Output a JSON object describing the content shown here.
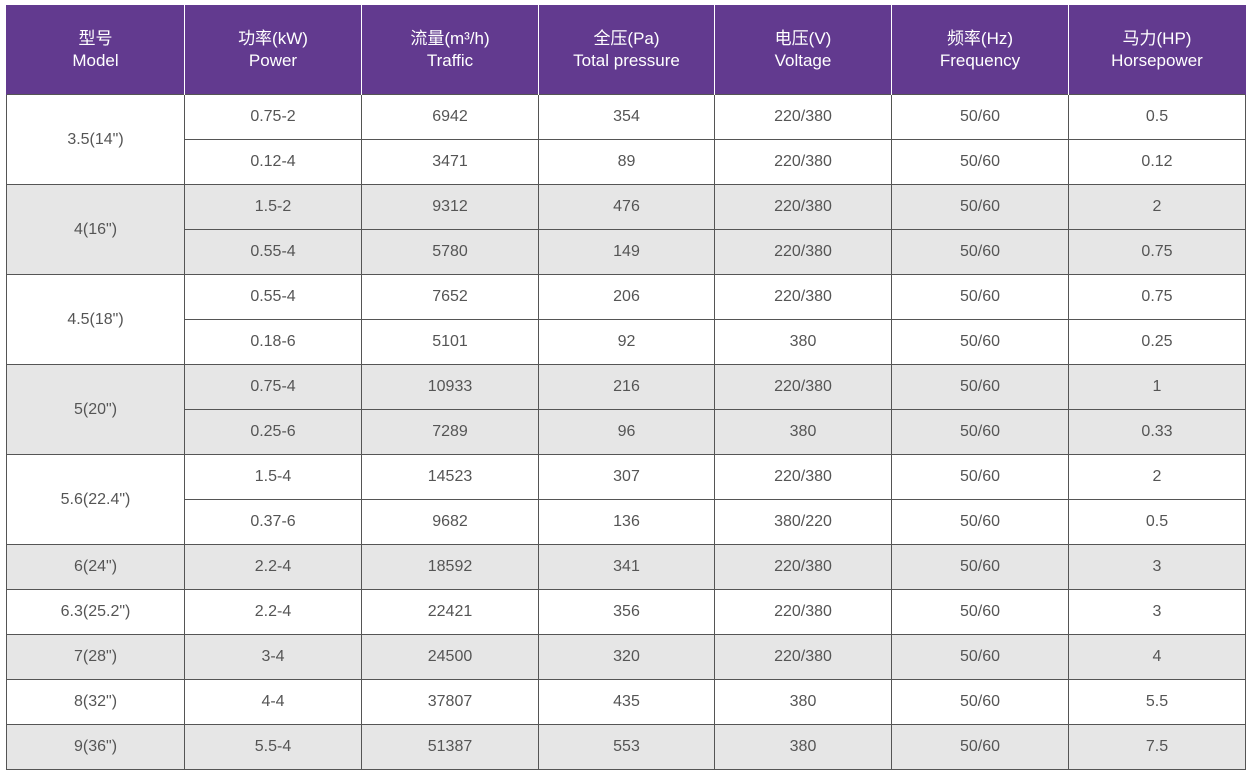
{
  "table": {
    "headers": [
      {
        "zh": "型号",
        "en": "Model"
      },
      {
        "zh": "功率(kW)",
        "en": "Power"
      },
      {
        "zh": "流量(m³/h)",
        "en": "Traffic"
      },
      {
        "zh": "全压(Pa)",
        "en": "Total pressure"
      },
      {
        "zh": "电压(V)",
        "en": "Voltage"
      },
      {
        "zh": "频率(Hz)",
        "en": "Frequency"
      },
      {
        "zh": "马力(HP)",
        "en": "Horsepower"
      }
    ],
    "groups": [
      {
        "model": "3.5(14\")",
        "rows": [
          {
            "power": "0.75-2",
            "traffic": "6942",
            "pressure": "354",
            "voltage": "220/380",
            "frequency": "50/60",
            "hp": "0.5"
          },
          {
            "power": "0.12-4",
            "traffic": "3471",
            "pressure": "89",
            "voltage": "220/380",
            "frequency": "50/60",
            "hp": "0.12"
          }
        ]
      },
      {
        "model": "4(16\")",
        "rows": [
          {
            "power": "1.5-2",
            "traffic": "9312",
            "pressure": "476",
            "voltage": "220/380",
            "frequency": "50/60",
            "hp": "2"
          },
          {
            "power": "0.55-4",
            "traffic": "5780",
            "pressure": "149",
            "voltage": "220/380",
            "frequency": "50/60",
            "hp": "0.75"
          }
        ]
      },
      {
        "model": "4.5(18\")",
        "rows": [
          {
            "power": "0.55-4",
            "traffic": "7652",
            "pressure": "206",
            "voltage": "220/380",
            "frequency": "50/60",
            "hp": "0.75"
          },
          {
            "power": "0.18-6",
            "traffic": "5101",
            "pressure": "92",
            "voltage": "380",
            "frequency": "50/60",
            "hp": "0.25"
          }
        ]
      },
      {
        "model": "5(20\")",
        "rows": [
          {
            "power": "0.75-4",
            "traffic": "10933",
            "pressure": "216",
            "voltage": "220/380",
            "frequency": "50/60",
            "hp": "1"
          },
          {
            "power": "0.25-6",
            "traffic": "7289",
            "pressure": "96",
            "voltage": "380",
            "frequency": "50/60",
            "hp": "0.33"
          }
        ]
      },
      {
        "model": "5.6(22.4\")",
        "rows": [
          {
            "power": "1.5-4",
            "traffic": "14523",
            "pressure": "307",
            "voltage": "220/380",
            "frequency": "50/60",
            "hp": "2"
          },
          {
            "power": "0.37-6",
            "traffic": "9682",
            "pressure": "136",
            "voltage": "380/220",
            "frequency": "50/60",
            "hp": "0.5"
          }
        ]
      },
      {
        "model": "6(24\")",
        "rows": [
          {
            "power": "2.2-4",
            "traffic": "18592",
            "pressure": "341",
            "voltage": "220/380",
            "frequency": "50/60",
            "hp": "3"
          }
        ]
      },
      {
        "model": "6.3(25.2\")",
        "rows": [
          {
            "power": "2.2-4",
            "traffic": "22421",
            "pressure": "356",
            "voltage": "220/380",
            "frequency": "50/60",
            "hp": "3"
          }
        ]
      },
      {
        "model": "7(28\")",
        "rows": [
          {
            "power": "3-4",
            "traffic": "24500",
            "pressure": "320",
            "voltage": "220/380",
            "frequency": "50/60",
            "hp": "4"
          }
        ]
      },
      {
        "model": "8(32\")",
        "rows": [
          {
            "power": "4-4",
            "traffic": "37807",
            "pressure": "435",
            "voltage": "380",
            "frequency": "50/60",
            "hp": "5.5"
          }
        ]
      },
      {
        "model": "9(36\")",
        "rows": [
          {
            "power": "5.5-4",
            "traffic": "51387",
            "pressure": "553",
            "voltage": "380",
            "frequency": "50/60",
            "hp": "7.5"
          }
        ]
      }
    ]
  },
  "colors": {
    "header_bg": "#623a8f",
    "header_text": "#ffffff",
    "shade_row": "#e6e6e6",
    "body_text": "#555555"
  }
}
